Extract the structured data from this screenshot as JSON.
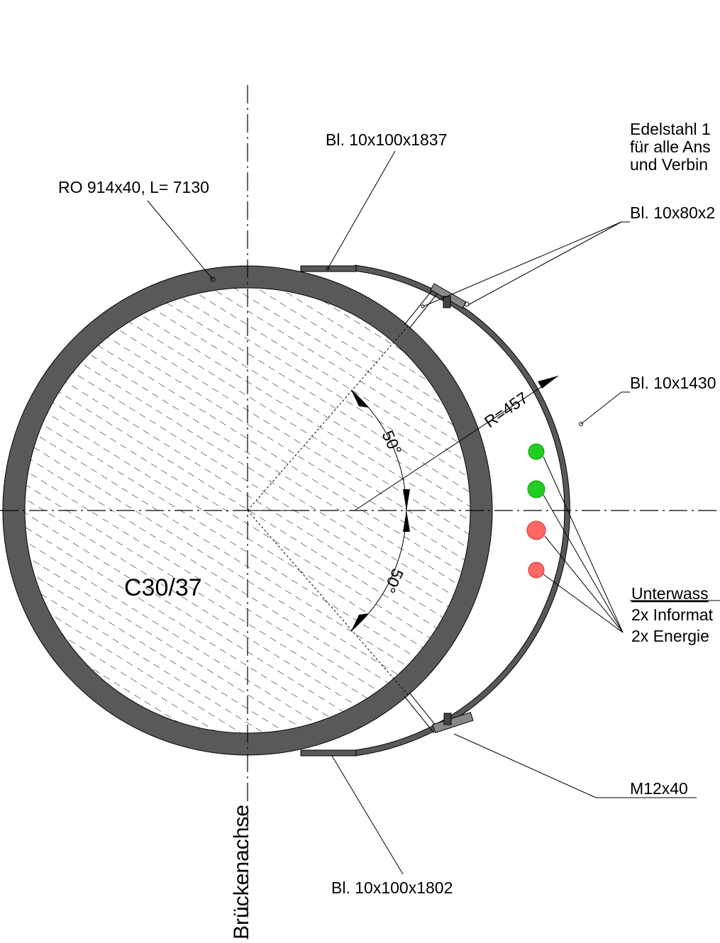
{
  "labels": {
    "pipe": "RO 914x40, L= 7130",
    "plate_top": "Bl. 10x100x1837",
    "plate_bottom": "Bl. 10x100x1802",
    "plate_side": "Bl. 10x1430",
    "plate_bracket": "Bl. 10x80x2",
    "material_line1": "Edelstahl 1",
    "material_line2": "für alle Ans",
    "material_line3": "und Verbin",
    "concrete": "C30/37",
    "radius": "R=457",
    "angle_upper": "50°",
    "angle_lower": "50°",
    "bolt": "M12x40",
    "cable_title": "Unterwass",
    "cable_info": "2x Informat",
    "cable_energy": "2x Energie",
    "bridge_axis": "Brückenachse"
  },
  "cables": [
    {
      "type": "info",
      "color": "#22cc22"
    },
    {
      "type": "info",
      "color": "#22cc22"
    },
    {
      "type": "energy",
      "color": "#ff6666"
    },
    {
      "type": "energy",
      "color": "#ff6666"
    }
  ],
  "colors": {
    "steel": "#595959",
    "hatch": "#000000",
    "info_cable": "#22cc22",
    "energy_cable": "#ff6666"
  }
}
